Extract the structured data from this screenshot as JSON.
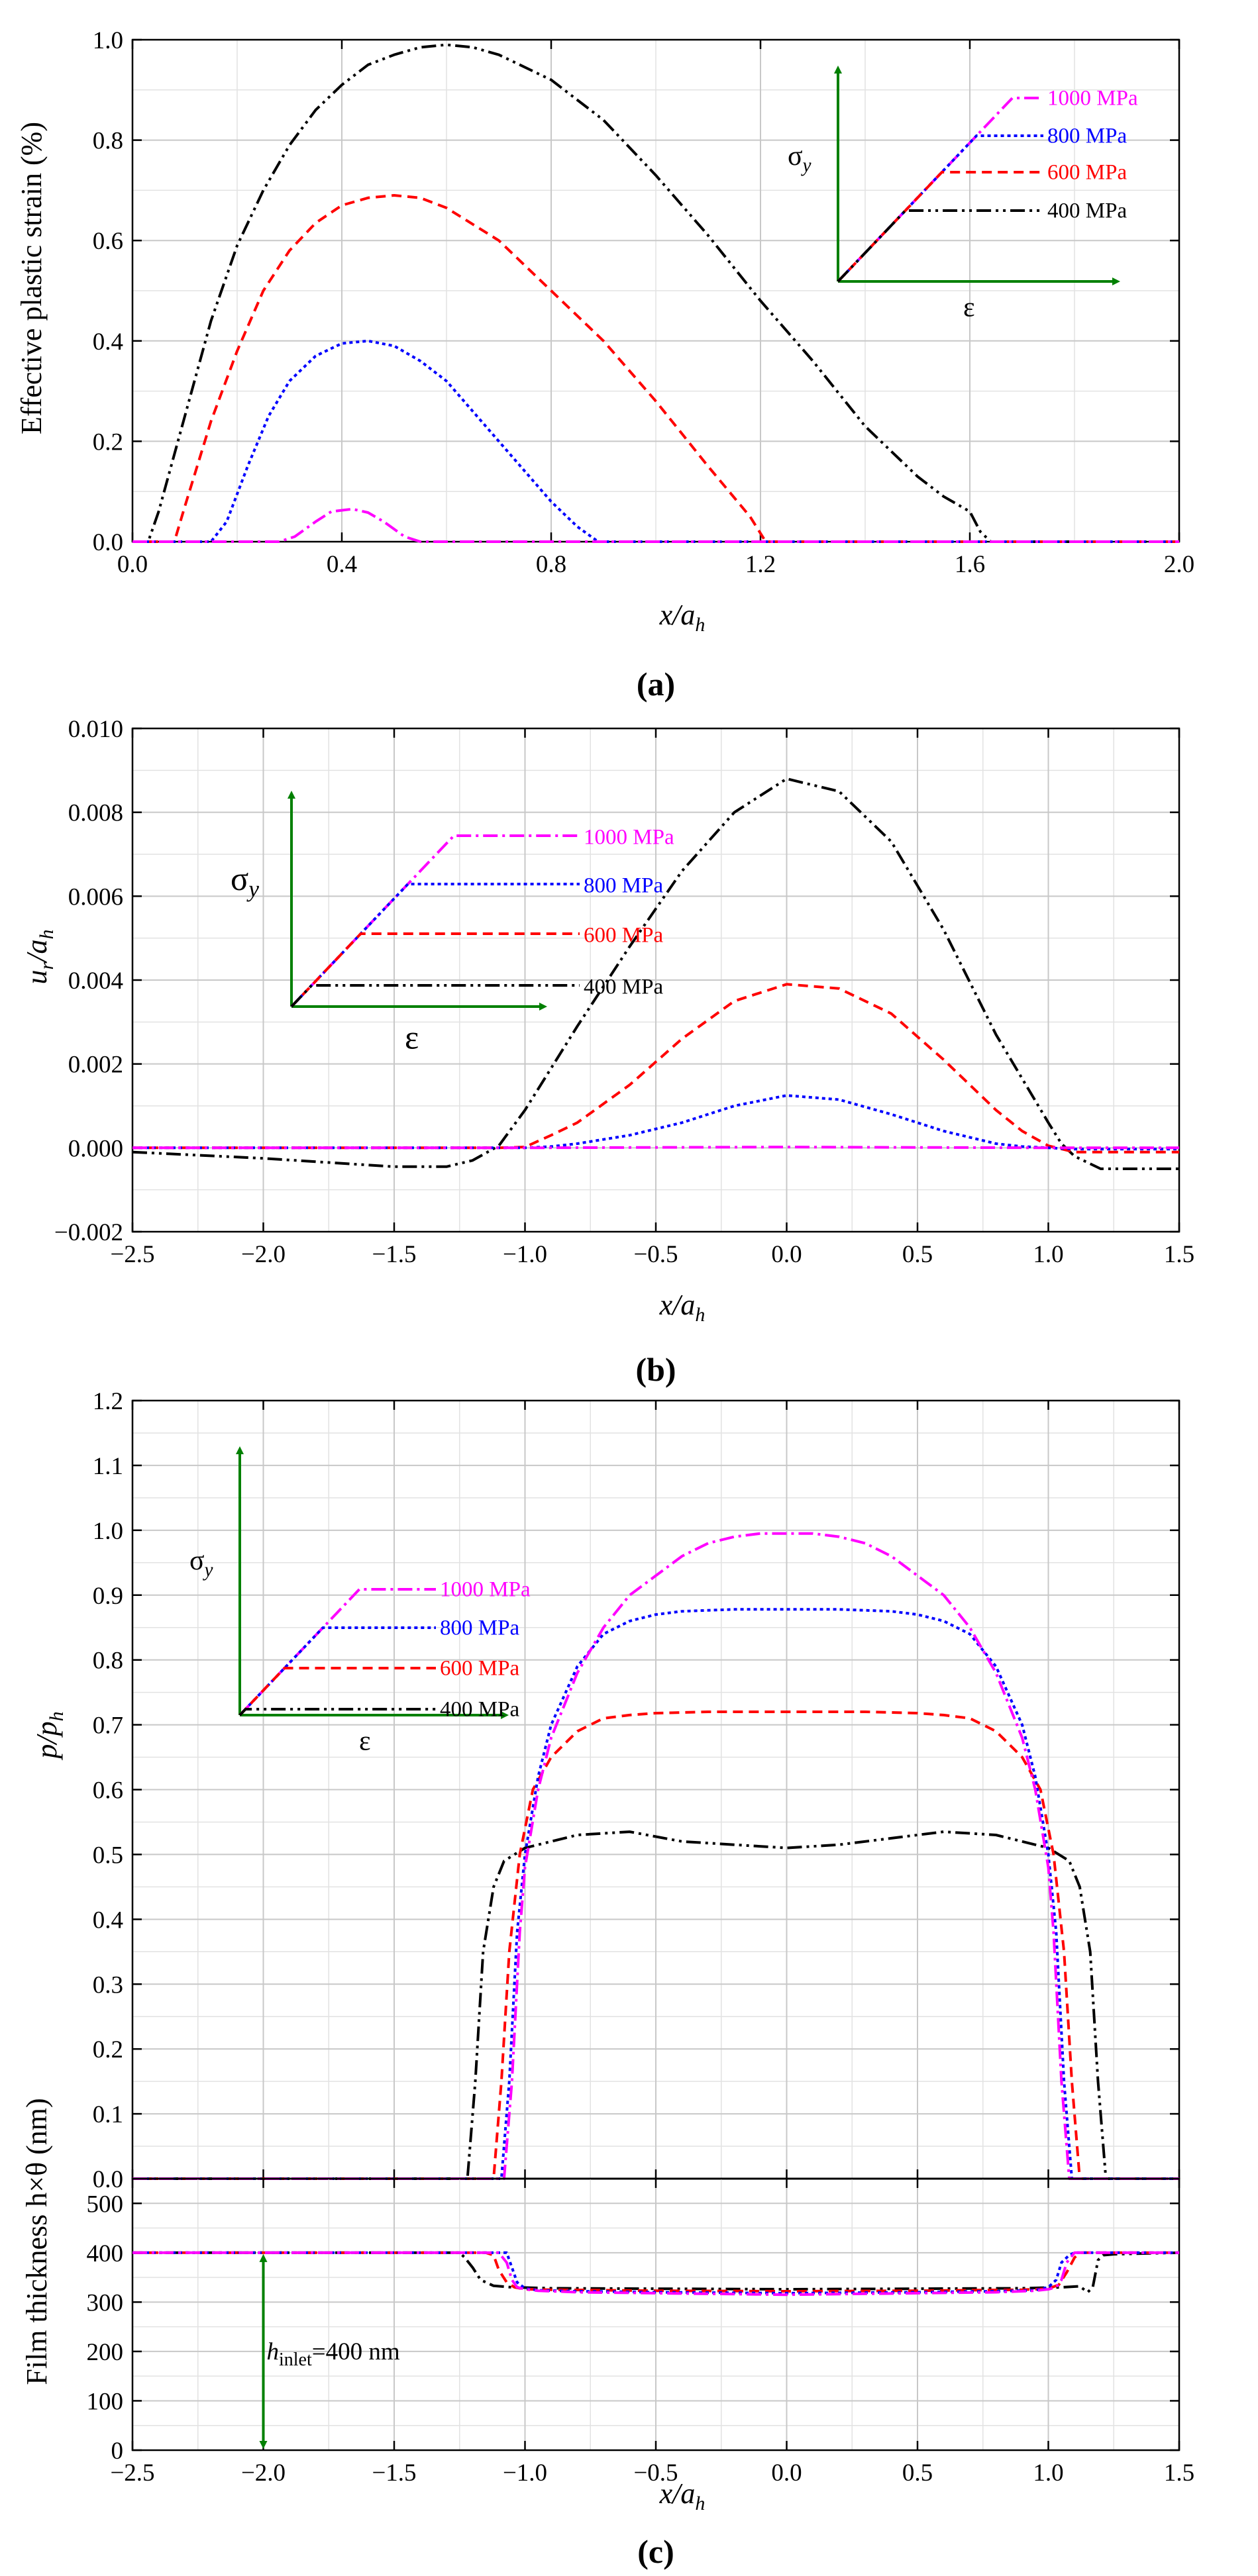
{
  "colors": {
    "s1000": "#FF00FF",
    "s800": "#0000FF",
    "s600": "#FF0000",
    "s400": "#000000",
    "inset": "#008000",
    "grid": "#C8C8C8"
  },
  "chart_data": [
    {
      "id": "a",
      "type": "line",
      "panel_label": "(a)",
      "title": "",
      "xlabel": "x/a_h",
      "ylabel": "Effective plastic strain (%)",
      "xlim": [
        0.0,
        2.0
      ],
      "ylim": [
        0.0,
        1.0
      ],
      "xticks": [
        "0.0",
        "0.4",
        "0.8",
        "1.2",
        "1.6",
        "2.0"
      ],
      "yticks": [
        "0.0",
        "0.2",
        "0.4",
        "0.6",
        "0.8",
        "1.0"
      ],
      "inset_legend": {
        "ylabel": "σ_y",
        "xlabel": "ε",
        "entries": [
          "1000 MPa",
          "800 MPa",
          "600 MPa",
          "400 MPa"
        ]
      },
      "series": [
        {
          "name": "1000 MPa",
          "x": [
            0,
            0.28,
            0.31,
            0.35,
            0.38,
            0.42,
            0.45,
            0.48,
            0.52,
            0.55,
            2.0
          ],
          "y": [
            0,
            0,
            0.01,
            0.04,
            0.06,
            0.065,
            0.058,
            0.04,
            0.01,
            0,
            0
          ]
        },
        {
          "name": "800 MPa",
          "x": [
            0,
            0.15,
            0.18,
            0.22,
            0.26,
            0.3,
            0.35,
            0.4,
            0.45,
            0.5,
            0.55,
            0.6,
            0.65,
            0.7,
            0.75,
            0.8,
            0.85,
            0.89,
            2.0
          ],
          "y": [
            0,
            0,
            0.04,
            0.15,
            0.25,
            0.32,
            0.37,
            0.395,
            0.4,
            0.39,
            0.36,
            0.32,
            0.26,
            0.2,
            0.14,
            0.08,
            0.03,
            0,
            0
          ]
        },
        {
          "name": "600 MPa",
          "x": [
            0,
            0.08,
            0.1,
            0.15,
            0.2,
            0.25,
            0.3,
            0.35,
            0.4,
            0.45,
            0.5,
            0.55,
            0.6,
            0.7,
            0.8,
            0.9,
            1.0,
            1.1,
            1.18,
            1.21,
            2.0
          ],
          "y": [
            0,
            0,
            0.07,
            0.24,
            0.38,
            0.5,
            0.58,
            0.635,
            0.67,
            0.685,
            0.69,
            0.685,
            0.665,
            0.6,
            0.5,
            0.4,
            0.28,
            0.15,
            0.05,
            0,
            0
          ]
        },
        {
          "name": "400 MPa",
          "x": [
            0,
            0.03,
            0.05,
            0.1,
            0.15,
            0.2,
            0.25,
            0.3,
            0.35,
            0.4,
            0.45,
            0.5,
            0.55,
            0.6,
            0.65,
            0.7,
            0.8,
            0.9,
            1.0,
            1.1,
            1.2,
            1.3,
            1.4,
            1.5,
            1.55,
            1.6,
            1.62,
            1.64,
            2.0
          ],
          "y": [
            0,
            0,
            0.06,
            0.25,
            0.44,
            0.59,
            0.7,
            0.79,
            0.86,
            0.91,
            0.95,
            0.97,
            0.985,
            0.99,
            0.985,
            0.97,
            0.92,
            0.84,
            0.73,
            0.61,
            0.48,
            0.36,
            0.23,
            0.13,
            0.09,
            0.06,
            0.02,
            0,
            0
          ]
        }
      ]
    },
    {
      "id": "b",
      "type": "line",
      "panel_label": "(b)",
      "title": "",
      "xlabel": "x/a_h",
      "ylabel": "u_r/a_h",
      "xlim": [
        -2.5,
        1.5
      ],
      "ylim": [
        -0.002,
        0.01
      ],
      "xticks": [
        "−2.5",
        "−2.0",
        "−1.5",
        "−1.0",
        "−0.5",
        "0.0",
        "0.5",
        "1.0",
        "1.5"
      ],
      "yticks": [
        "−0.002",
        "0.000",
        "0.002",
        "0.004",
        "0.006",
        "0.008",
        "0.010"
      ],
      "inset_legend": {
        "ylabel": "σ_y",
        "xlabel": "ε",
        "entries": [
          "1000 MPa",
          "800 MPa",
          "600 MPa",
          "400 MPa"
        ]
      },
      "series": [
        {
          "name": "1000 MPa",
          "x": [
            -2.5,
            -1.0,
            -0.5,
            0.0,
            0.5,
            1.0,
            1.5
          ],
          "y": [
            0,
            0,
            1e-05,
            2e-05,
            1e-05,
            0,
            0
          ]
        },
        {
          "name": "800 MPa",
          "x": [
            -2.5,
            -1.0,
            -0.9,
            -0.8,
            -0.6,
            -0.4,
            -0.2,
            0.0,
            0.2,
            0.4,
            0.6,
            0.8,
            0.9,
            1.0,
            1.1,
            1.5
          ],
          "y": [
            0,
            0,
            3e-05,
            0.0001,
            0.0003,
            0.0006,
            0.001,
            0.00125,
            0.00115,
            0.0008,
            0.0004,
            0.0001,
            3e-05,
            0,
            -3e-05,
            -3e-05
          ]
        },
        {
          "name": "600 MPa",
          "x": [
            -2.5,
            -1.1,
            -1.0,
            -0.9,
            -0.8,
            -0.6,
            -0.4,
            -0.2,
            0.0,
            0.2,
            0.4,
            0.6,
            0.8,
            0.9,
            1.0,
            1.1,
            1.2,
            1.5
          ],
          "y": [
            0,
            0,
            2e-05,
            0.0003,
            0.0006,
            0.0015,
            0.0026,
            0.0035,
            0.0039,
            0.0038,
            0.0032,
            0.0021,
            0.0009,
            0.0004,
            5e-05,
            -0.0001,
            -0.0001,
            -0.0001
          ]
        },
        {
          "name": "400 MPa",
          "x": [
            -2.5,
            -2.0,
            -1.5,
            -1.3,
            -1.2,
            -1.1,
            -1.0,
            -0.8,
            -0.6,
            -0.4,
            -0.2,
            0.0,
            0.2,
            0.4,
            0.6,
            0.8,
            1.0,
            1.05,
            1.1,
            1.2,
            1.3,
            1.5
          ],
          "y": [
            -0.0001,
            -0.00025,
            -0.00045,
            -0.00045,
            -0.0003,
            5e-05,
            0.0009,
            0.0029,
            0.0048,
            0.0066,
            0.008,
            0.0088,
            0.0085,
            0.0073,
            0.0052,
            0.0027,
            0.0006,
            0.0001,
            -0.0002,
            -0.0005,
            -0.0005,
            -0.0005
          ]
        }
      ]
    },
    {
      "id": "c_top",
      "type": "line",
      "panel_label": "(c)",
      "title": "",
      "xlabel": "",
      "ylabel": "p/p_h",
      "xlim": [
        -2.5,
        1.5
      ],
      "ylim": [
        0.0,
        1.2
      ],
      "xticks": [],
      "yticks": [
        "0.0",
        "0.1",
        "0.2",
        "0.3",
        "0.4",
        "0.5",
        "0.6",
        "0.7",
        "0.8",
        "0.9",
        "1.0",
        "1.1",
        "1.2"
      ],
      "inset_legend": {
        "ylabel": "σ_y",
        "xlabel": "ε",
        "entries": [
          "1000 MPa",
          "800 MPa",
          "600 MPa",
          "400 MPa"
        ]
      },
      "series": [
        {
          "name": "1000 MPa",
          "x": [
            -2.5,
            -1.08,
            -1.05,
            -1.02,
            -1.0,
            -0.95,
            -0.9,
            -0.8,
            -0.7,
            -0.6,
            -0.5,
            -0.4,
            -0.3,
            -0.2,
            -0.1,
            0.0,
            0.1,
            0.2,
            0.3,
            0.4,
            0.5,
            0.6,
            0.7,
            0.8,
            0.9,
            0.95,
            1.0,
            1.02,
            1.05,
            1.08,
            1.5
          ],
          "y": [
            0,
            0,
            0.15,
            0.38,
            0.48,
            0.6,
            0.68,
            0.78,
            0.85,
            0.9,
            0.93,
            0.96,
            0.98,
            0.99,
            0.995,
            0.995,
            0.995,
            0.99,
            0.98,
            0.96,
            0.93,
            0.9,
            0.85,
            0.78,
            0.68,
            0.6,
            0.48,
            0.38,
            0.15,
            0,
            0
          ]
        },
        {
          "name": "800 MPa",
          "x": [
            -2.5,
            -1.09,
            -1.06,
            -1.03,
            -1.0,
            -0.95,
            -0.9,
            -0.8,
            -0.7,
            -0.6,
            -0.5,
            -0.4,
            -0.2,
            0.0,
            0.2,
            0.4,
            0.5,
            0.6,
            0.7,
            0.8,
            0.9,
            0.95,
            1.0,
            1.03,
            1.06,
            1.09,
            1.5
          ],
          "y": [
            0,
            0,
            0.15,
            0.38,
            0.5,
            0.62,
            0.7,
            0.79,
            0.84,
            0.86,
            0.87,
            0.875,
            0.878,
            0.878,
            0.878,
            0.875,
            0.87,
            0.86,
            0.84,
            0.79,
            0.7,
            0.62,
            0.5,
            0.38,
            0.15,
            0,
            0
          ]
        },
        {
          "name": "600 MPa",
          "x": [
            -2.5,
            -1.12,
            -1.09,
            -1.06,
            -1.02,
            -0.97,
            -0.9,
            -0.8,
            -0.7,
            -0.6,
            -0.5,
            -0.3,
            0.0,
            0.3,
            0.5,
            0.6,
            0.7,
            0.8,
            0.9,
            0.97,
            1.02,
            1.06,
            1.09,
            1.12,
            1.5
          ],
          "y": [
            0,
            0,
            0.15,
            0.35,
            0.5,
            0.6,
            0.65,
            0.69,
            0.71,
            0.715,
            0.718,
            0.72,
            0.72,
            0.72,
            0.718,
            0.715,
            0.71,
            0.69,
            0.65,
            0.6,
            0.5,
            0.35,
            0.15,
            0,
            0
          ]
        },
        {
          "name": "400 MPa",
          "x": [
            -2.5,
            -1.22,
            -1.19,
            -1.16,
            -1.12,
            -1.08,
            -1.0,
            -0.9,
            -0.8,
            -0.6,
            -0.4,
            -0.2,
            0.0,
            0.2,
            0.4,
            0.6,
            0.8,
            0.9,
            1.0,
            1.08,
            1.12,
            1.16,
            1.19,
            1.22,
            1.5
          ],
          "y": [
            0,
            0,
            0.15,
            0.35,
            0.45,
            0.49,
            0.51,
            0.52,
            0.53,
            0.535,
            0.52,
            0.515,
            0.51,
            0.515,
            0.525,
            0.535,
            0.53,
            0.52,
            0.51,
            0.49,
            0.45,
            0.35,
            0.15,
            0,
            0
          ]
        }
      ]
    },
    {
      "id": "c_bottom",
      "type": "line",
      "title": "",
      "xlabel": "x/a_h",
      "ylabel": "Film thickness h×θ (nm)",
      "xlim": [
        -2.5,
        1.5
      ],
      "ylim": [
        0,
        550
      ],
      "xticks": [
        "−2.5",
        "−2.0",
        "−1.5",
        "−1.0",
        "−0.5",
        "0.0",
        "0.5",
        "1.0",
        "1.5"
      ],
      "yticks": [
        "0",
        "100",
        "200",
        "300",
        "400",
        "500"
      ],
      "annotation": {
        "text_main": "h",
        "text_sub": "inlet",
        "text_rest": "=400 nm",
        "x": -2.0,
        "y_from": 0,
        "y_to": 400
      },
      "series": [
        {
          "name": "1000 MPa",
          "x": [
            -2.5,
            -1.1,
            -1.07,
            -1.05,
            -1.03,
            -1.0,
            -0.95,
            -0.8,
            -0.5,
            0.0,
            0.5,
            0.8,
            0.95,
            1.0,
            1.03,
            1.05,
            1.07,
            1.1,
            1.5
          ],
          "y": [
            400,
            400,
            380,
            345,
            330,
            326,
            323,
            320,
            318,
            315,
            318,
            320,
            323,
            326,
            330,
            345,
            380,
            400,
            400
          ]
        },
        {
          "name": "800 MPa",
          "x": [
            -2.5,
            -1.1,
            -1.07,
            -1.05,
            -1.03,
            -1.0,
            -0.95,
            -0.8,
            -0.5,
            0.0,
            0.5,
            0.8,
            0.95,
            1.0,
            1.03,
            1.05,
            1.08,
            1.1,
            1.5
          ],
          "y": [
            400,
            400,
            400,
            370,
            340,
            328,
            324,
            322,
            320,
            318,
            320,
            322,
            324,
            330,
            345,
            380,
            395,
            400,
            400
          ]
        },
        {
          "name": "600 MPa",
          "x": [
            -2.5,
            -1.15,
            -1.12,
            -1.1,
            -1.07,
            -1.04,
            -1.0,
            -0.9,
            -0.5,
            0.0,
            0.5,
            0.9,
            1.0,
            1.04,
            1.07,
            1.1,
            1.12,
            1.15,
            1.5
          ],
          "y": [
            400,
            400,
            395,
            365,
            340,
            330,
            326,
            325,
            323,
            322,
            323,
            325,
            327,
            335,
            360,
            390,
            400,
            400,
            400
          ]
        },
        {
          "name": "400 MPa",
          "x": [
            -2.5,
            -1.25,
            -1.23,
            -1.2,
            -1.17,
            -1.12,
            -1.05,
            -0.9,
            -0.5,
            0.0,
            0.5,
            0.9,
            1.05,
            1.12,
            1.15,
            1.17,
            1.19,
            1.21,
            1.25,
            1.5
          ],
          "y": [
            400,
            400,
            390,
            370,
            345,
            333,
            330,
            328,
            327,
            326,
            327,
            328,
            330,
            332,
            320,
            330,
            385,
            395,
            397,
            400
          ]
        }
      ]
    }
  ]
}
